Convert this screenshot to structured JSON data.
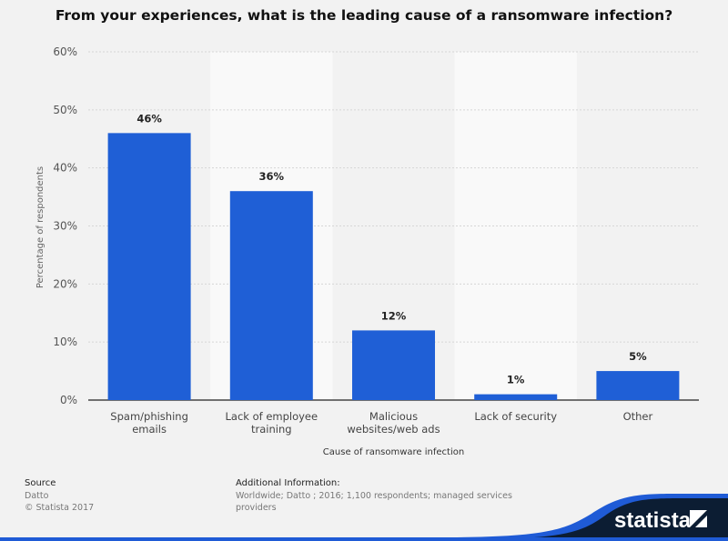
{
  "chart_data": {
    "type": "bar",
    "title": "From your experiences, what is the leading cause of a ransomware infection?",
    "categories": [
      [
        "Spam/phishing",
        "emails"
      ],
      [
        "Lack of employee",
        "training"
      ],
      [
        "Malicious",
        "websites/web ads"
      ],
      [
        "Lack of security"
      ],
      [
        "Other"
      ]
    ],
    "values": [
      46,
      36,
      12,
      1,
      5
    ],
    "data_labels": [
      "46%",
      "36%",
      "12%",
      "1%",
      "5%"
    ],
    "xlabel": "Cause of ransomware infection",
    "ylabel": "Percentage of respondents",
    "ylim": [
      0,
      60
    ],
    "yticks": [
      0,
      10,
      20,
      30,
      40,
      50,
      60
    ],
    "ytick_labels": [
      "0%",
      "10%",
      "20%",
      "30%",
      "40%",
      "50%",
      "60%"
    ],
    "grid": true,
    "bar_color": "#1f5fd6"
  },
  "footer": {
    "source_label": "Source",
    "source_value": "Datto",
    "copyright": "© Statista 2017",
    "additional_label": "Additional Information:",
    "additional_line1": "Worldwide; Datto ; 2016; 1,100 respondents; managed services",
    "additional_line2": "providers",
    "logo_text": "statista"
  }
}
